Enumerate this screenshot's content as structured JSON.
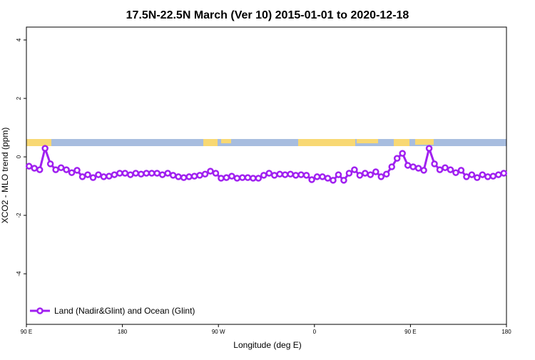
{
  "chart_data": {
    "type": "line",
    "title": "17.5N-22.5N March (Ver 10)   2015-01-01 to 2020-12-18",
    "x_label": "Longitude (deg E)",
    "y_label": "XCO2 - MLO trend (ppm)",
    "x": [
      92.5,
      97.5,
      102.5,
      107.5,
      112.5,
      117.5,
      122.5,
      127.5,
      132.5,
      137.5,
      142.5,
      147.5,
      152.5,
      157.5,
      162.5,
      167.5,
      172.5,
      177.5,
      182.5,
      187.5,
      192.5,
      197.5,
      202.5,
      207.5,
      212.5,
      217.5,
      222.5,
      227.5,
      232.5,
      237.5,
      242.5,
      247.5,
      252.5,
      257.5,
      262.5,
      267.5,
      272.5,
      277.5,
      282.5,
      287.5,
      292.5,
      297.5,
      302.5,
      307.5,
      312.5,
      317.5,
      322.5,
      327.5,
      332.5,
      337.5,
      342.5,
      347.5,
      352.5,
      357.5,
      362.5,
      367.5,
      372.5,
      377.5,
      382.5,
      387.5,
      392.5,
      397.5,
      402.5,
      407.5,
      412.5,
      417.5,
      422.5,
      427.5,
      432.5,
      437.5,
      442.5,
      447.5,
      452.5,
      457.5,
      462.5,
      467.5,
      472.5,
      477.5,
      482.5,
      487.5,
      492.5,
      497.5,
      502.5,
      507.5,
      512.5,
      517.5,
      522.5,
      527.5,
      532.5,
      537.5
    ],
    "series": [
      {
        "name": "Land (Nadir&Glint) and Ocean (Glint)",
        "color": "#a020f0",
        "values": [
          -0.32,
          -0.39,
          -0.44,
          0.29,
          -0.24,
          -0.44,
          -0.37,
          -0.44,
          -0.54,
          -0.46,
          -0.68,
          -0.61,
          -0.71,
          -0.61,
          -0.68,
          -0.66,
          -0.61,
          -0.56,
          -0.56,
          -0.61,
          -0.56,
          -0.59,
          -0.56,
          -0.56,
          -0.56,
          -0.61,
          -0.56,
          -0.63,
          -0.68,
          -0.71,
          -0.68,
          -0.66,
          -0.63,
          -0.59,
          -0.49,
          -0.56,
          -0.73,
          -0.71,
          -0.66,
          -0.73,
          -0.71,
          -0.71,
          -0.73,
          -0.73,
          -0.63,
          -0.56,
          -0.63,
          -0.59,
          -0.61,
          -0.59,
          -0.63,
          -0.61,
          -0.63,
          -0.78,
          -0.68,
          -0.68,
          -0.73,
          -0.8,
          -0.61,
          -0.8,
          -0.56,
          -0.44,
          -0.63,
          -0.56,
          -0.61,
          -0.51,
          -0.68,
          -0.59,
          -0.34,
          -0.05,
          0.12,
          -0.29,
          -0.34,
          -0.39,
          -0.46,
          0.29,
          -0.24,
          -0.44,
          -0.37,
          -0.44,
          -0.54,
          -0.46,
          -0.68,
          -0.61,
          -0.71,
          -0.61,
          -0.68,
          -0.66,
          -0.61,
          -0.56
        ]
      }
    ],
    "xlim": [
      90,
      540
    ],
    "xticks": [
      {
        "value": 90,
        "label": "90 E"
      },
      180,
      {
        "value": 270,
        "label": "90 W"
      },
      {
        "value": 360,
        "label": "0"
      },
      {
        "value": 450,
        "label": "90 E"
      },
      {
        "value": 540,
        "label": "180"
      }
    ],
    "ylim": [
      -5.73,
      4.44
    ],
    "yticks": [
      -4,
      -2,
      0,
      2,
      4
    ],
    "legend": "bottom-left"
  }
}
